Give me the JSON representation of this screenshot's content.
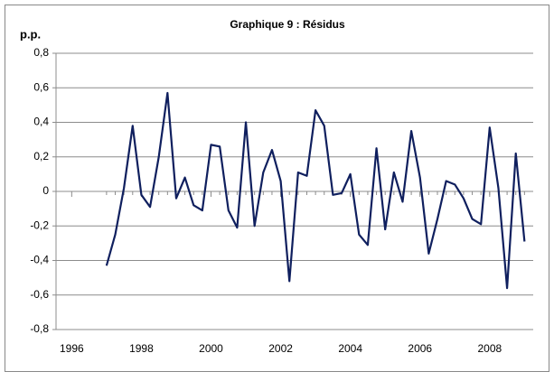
{
  "chart_data": {
    "type": "line",
    "title": "Graphique 9 : Résidus",
    "ylabel": "p.p.",
    "x": [
      1997,
      1997.25,
      1997.5,
      1997.75,
      1998,
      1998.25,
      1998.5,
      1998.75,
      1999,
      1999.25,
      1999.5,
      1999.75,
      2000,
      2000.25,
      2000.5,
      2000.75,
      2001,
      2001.25,
      2001.5,
      2001.75,
      2002,
      2002.25,
      2002.5,
      2002.75,
      2003,
      2003.25,
      2003.5,
      2003.75,
      2004,
      2004.25,
      2004.5,
      2004.75,
      2005,
      2005.25,
      2005.5,
      2005.75,
      2006,
      2006.25,
      2006.5,
      2006.75,
      2007,
      2007.25,
      2007.5,
      2007.75,
      2008,
      2008.25,
      2008.5,
      2008.75,
      2009
    ],
    "series": [
      {
        "name": "Résidus",
        "color": "#0f1f5e",
        "values": [
          -0.43,
          -0.25,
          0.02,
          0.38,
          -0.02,
          -0.09,
          0.2,
          0.57,
          -0.04,
          0.08,
          -0.08,
          -0.11,
          0.27,
          0.26,
          -0.11,
          -0.21,
          0.4,
          -0.2,
          0.11,
          0.24,
          0.06,
          -0.52,
          0.11,
          0.09,
          0.47,
          0.38,
          -0.02,
          -0.01,
          0.1,
          -0.25,
          -0.31,
          0.25,
          -0.22,
          0.11,
          -0.06,
          0.35,
          0.08,
          -0.36,
          -0.16,
          0.06,
          0.04,
          -0.04,
          -0.16,
          -0.19,
          0.37,
          0.02,
          -0.56,
          0.22,
          -0.29
        ]
      }
    ],
    "xlim": [
      1995.55,
      2009.25
    ],
    "xticks": [
      1996,
      1998,
      2000,
      2002,
      2004,
      2006,
      2008
    ],
    "ylim": [
      -0.8,
      0.8
    ],
    "yticks": [
      {
        "value": 0.8,
        "label": "0,8"
      },
      {
        "value": 0.6,
        "label": "0,6"
      },
      {
        "value": 0.4,
        "label": "0,4"
      },
      {
        "value": 0.2,
        "label": "0,2"
      },
      0,
      {
        "value": -0.2,
        "label": "-0,2"
      },
      {
        "value": -0.4,
        "label": "-0,4"
      },
      {
        "value": -0.6,
        "label": "-0,6"
      },
      {
        "value": -0.8,
        "label": "-0,8"
      }
    ],
    "grid": true
  }
}
